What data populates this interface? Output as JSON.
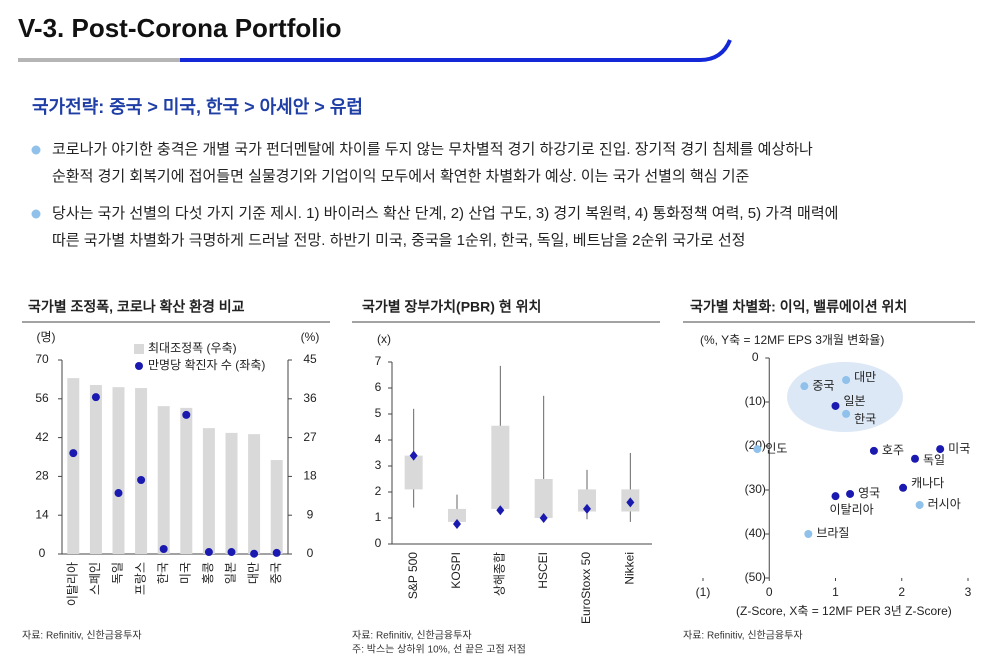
{
  "header": {
    "title": "V-3. Post-Corona Portfolio"
  },
  "subtitle": "국가전략: 중국 > 미국, 한국 > 아세안 > 유럽",
  "bullets": [
    [
      "코로나가 야기한 충격은 개별 국가 펀더멘탈에 차이를 두지 않는 무차별적 경기 하강기로 진입. 장기적 경기 침체를 예상하나",
      "순환적 경기 회복기에 접어들면 실물경기와 기업이익 모두에서 확연한 차별화가 예상. 이는 국가 선별의 핵심 기준"
    ],
    [
      "당사는 국가 선별의 다섯 가지 기준 제시. 1) 바이러스 확산 단계, 2) 산업 구도, 3) 경기 복원력, 4) 통화정책 여력, 5) 가격 매력에",
      "따른 국가별 차별화가 극명하게 드러날 전망. 하반기 미국, 중국을 1순위, 한국, 독일, 베트남을 2순위 국가로 선정"
    ]
  ],
  "chart_data": [
    {
      "type": "bar",
      "title": "국가별 조정폭, 코로나 확산 환경 비교",
      "categories": [
        "이탈리아",
        "스페인",
        "독일",
        "프랑스",
        "한국",
        "미국",
        "홍콩",
        "일본",
        "대만",
        "중국"
      ],
      "ylabel": "(명)",
      "y2label": "(%)",
      "ylim": [
        0,
        70
      ],
      "yticks": [
        0,
        14,
        28,
        42,
        56,
        70
      ],
      "y2lim": [
        0,
        45
      ],
      "y2ticks": [
        0,
        9,
        18,
        27,
        36,
        45
      ],
      "series": [
        {
          "name": "최대조정폭 (우축)",
          "color": "#d9d9d9",
          "axis": "y2",
          "values": [
            40.8,
            39.2,
            38.7,
            38.5,
            34.3,
            33.9,
            29.2,
            28.1,
            27.8,
            21.8
          ]
        },
        {
          "name": "만명당 확진자 수 (좌축)",
          "color": "#1a1ab0",
          "values": [
            36.4,
            56.6,
            22.0,
            26.7,
            1.8,
            50.2,
            0.7,
            0.7,
            0.1,
            0.4
          ]
        }
      ],
      "source": "자료: Refinitiv, 신한금융투자"
    },
    {
      "type": "box",
      "title": "국가별 장부가치(PBR) 현 위치",
      "categories": [
        "S&P 500",
        "KOSPI",
        "상해종합",
        "HSCEI",
        "EuroStoxx 50",
        "Nikkei"
      ],
      "ylabel": "(x)",
      "ylim": [
        0,
        7
      ],
      "yticks": [
        0,
        1,
        2,
        3,
        4,
        5,
        6,
        7
      ],
      "box_color": "#d9d9d9",
      "current_color": "#1a1ab0",
      "high": [
        5.2,
        1.9,
        6.85,
        5.7,
        2.85,
        3.5
      ],
      "upper": [
        3.4,
        1.35,
        4.55,
        2.5,
        2.1,
        2.1
      ],
      "lower": [
        2.1,
        0.85,
        1.35,
        1.0,
        1.25,
        1.25
      ],
      "low": [
        1.4,
        0.7,
        1.2,
        0.85,
        0.95,
        0.85
      ],
      "current": [
        3.4,
        0.77,
        1.3,
        1.0,
        1.35,
        1.6
      ],
      "source": "자료: Refinitiv, 신한금융투자",
      "note": "주: 박스는 상하위 10%, 선 끝은 고점 저점"
    },
    {
      "type": "scatter",
      "title": "국가별 차별화: 이익, 밸류에이션 위치",
      "ylabel": "(%, Y축 = 12MF EPS 3개월 변화율)",
      "xlabel": "(Z-Score, X축 = 12MF PER 3년 Z-Score)",
      "xlim": [
        -1,
        3
      ],
      "xticks": [
        {
          "value": -1,
          "label": "(1)"
        },
        0,
        1,
        2,
        3
      ],
      "ylim": [
        -50,
        0
      ],
      "yticks": [
        0,
        {
          "value": -10,
          "label": "(10)"
        },
        {
          "value": -20,
          "label": "(20)"
        },
        {
          "value": -30,
          "label": "(30)"
        },
        {
          "value": -40,
          "label": "(40)"
        },
        {
          "value": -50,
          "label": "(50)"
        }
      ],
      "points": [
        {
          "label": "중국",
          "x": 0.53,
          "y": -6.4,
          "color": "#8fc1ea"
        },
        {
          "label": "대만",
          "x": 1.16,
          "y": -5.0,
          "color": "#8fc1ea"
        },
        {
          "label": "일본",
          "x": 1.0,
          "y": -10.9,
          "color": "#1a1ab0"
        },
        {
          "label": "한국",
          "x": 1.16,
          "y": -12.7,
          "color": "#8fc1ea"
        },
        {
          "label": "인도",
          "x": -0.18,
          "y": -20.7,
          "color": "#8fc1ea"
        },
        {
          "label": "호주",
          "x": 1.58,
          "y": -21.1,
          "color": "#1a1ab0"
        },
        {
          "label": "미국",
          "x": 2.58,
          "y": -20.7,
          "color": "#1a1ab0"
        },
        {
          "label": "독일",
          "x": 2.2,
          "y": -22.9,
          "color": "#1a1ab0"
        },
        {
          "label": "캐나다",
          "x": 2.02,
          "y": -29.5,
          "color": "#1a1ab0"
        },
        {
          "label": "영국",
          "x": 1.22,
          "y": -30.9,
          "color": "#1a1ab0"
        },
        {
          "label": "이탈리아",
          "x": 1.0,
          "y": -31.4,
          "color": "#1a1ab0"
        },
        {
          "label": "러시아",
          "x": 2.27,
          "y": -33.4,
          "color": "#8fc1ea"
        },
        {
          "label": "브라질",
          "x": 0.59,
          "y": -40.0,
          "color": "#8fc1ea"
        }
      ],
      "source": "자료: Refinitiv, 신한금융투자"
    }
  ]
}
